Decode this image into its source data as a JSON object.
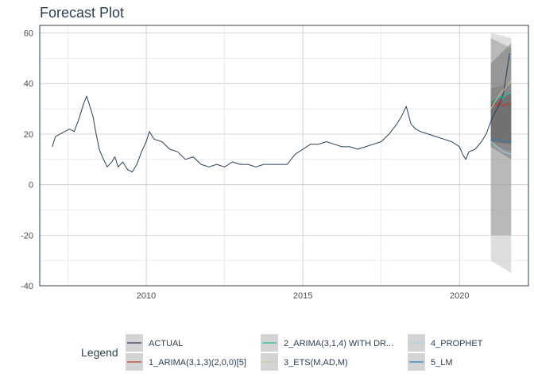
{
  "chart_data": {
    "type": "line",
    "title": "Forecast Plot",
    "xlabel": "",
    "ylabel": "",
    "xlim": [
      2006.6,
      2022.2
    ],
    "ylim": [
      -40,
      63
    ],
    "x_ticks": [
      2010,
      2015,
      2020
    ],
    "y_ticks": [
      60,
      40,
      20,
      0,
      -20,
      -40
    ],
    "grid": true,
    "legend_position": "bottom",
    "legend_title": "Legend",
    "series": [
      {
        "name": "ACTUAL",
        "color": "#2c3e50",
        "points": [
          [
            2007.0,
            15
          ],
          [
            2007.1,
            19
          ],
          [
            2007.25,
            20
          ],
          [
            2007.4,
            21
          ],
          [
            2007.55,
            22
          ],
          [
            2007.7,
            21
          ],
          [
            2007.85,
            26
          ],
          [
            2008.0,
            32
          ],
          [
            2008.1,
            35
          ],
          [
            2008.2,
            31
          ],
          [
            2008.3,
            27
          ],
          [
            2008.4,
            20
          ],
          [
            2008.5,
            14
          ],
          [
            2008.6,
            11
          ],
          [
            2008.75,
            7
          ],
          [
            2008.9,
            9
          ],
          [
            2009.0,
            11
          ],
          [
            2009.1,
            7
          ],
          [
            2009.25,
            9
          ],
          [
            2009.4,
            6
          ],
          [
            2009.55,
            5
          ],
          [
            2009.7,
            8
          ],
          [
            2009.85,
            13
          ],
          [
            2010.0,
            17
          ],
          [
            2010.1,
            21
          ],
          [
            2010.25,
            18
          ],
          [
            2010.5,
            17
          ],
          [
            2010.75,
            14
          ],
          [
            2011.0,
            13
          ],
          [
            2011.25,
            10
          ],
          [
            2011.5,
            11
          ],
          [
            2011.75,
            8
          ],
          [
            2012.0,
            7
          ],
          [
            2012.25,
            8
          ],
          [
            2012.5,
            7
          ],
          [
            2012.75,
            9
          ],
          [
            2013.0,
            8
          ],
          [
            2013.25,
            8
          ],
          [
            2013.5,
            7
          ],
          [
            2013.75,
            8
          ],
          [
            2014.0,
            8
          ],
          [
            2014.25,
            8
          ],
          [
            2014.5,
            8
          ],
          [
            2014.75,
            12
          ],
          [
            2015.0,
            14
          ],
          [
            2015.25,
            16
          ],
          [
            2015.5,
            16
          ],
          [
            2015.75,
            17
          ],
          [
            2016.0,
            16
          ],
          [
            2016.25,
            15
          ],
          [
            2016.5,
            15
          ],
          [
            2016.75,
            14
          ],
          [
            2017.0,
            15
          ],
          [
            2017.25,
            16
          ],
          [
            2017.5,
            17
          ],
          [
            2017.75,
            20
          ],
          [
            2018.0,
            24
          ],
          [
            2018.15,
            27
          ],
          [
            2018.3,
            31
          ],
          [
            2018.45,
            24
          ],
          [
            2018.6,
            22
          ],
          [
            2018.75,
            21
          ],
          [
            2019.0,
            20
          ],
          [
            2019.25,
            19
          ],
          [
            2019.5,
            18
          ],
          [
            2019.75,
            17
          ],
          [
            2020.0,
            15
          ],
          [
            2020.1,
            12
          ],
          [
            2020.2,
            10
          ],
          [
            2020.3,
            13
          ],
          [
            2020.5,
            14
          ],
          [
            2020.7,
            17
          ],
          [
            2020.85,
            20
          ],
          [
            2021.0,
            25
          ],
          [
            2021.15,
            29
          ],
          [
            2021.25,
            31
          ],
          [
            2021.4,
            36
          ],
          [
            2021.5,
            44
          ],
          [
            2021.6,
            52
          ]
        ]
      },
      {
        "name": "1_ARIMA(3,1,3)(2,0,0)[5]",
        "color": "#c0392b",
        "points": [
          [
            2021.0,
            31
          ],
          [
            2021.1,
            33
          ],
          [
            2021.2,
            31
          ],
          [
            2021.3,
            33
          ],
          [
            2021.4,
            31
          ],
          [
            2021.5,
            32
          ],
          [
            2021.65,
            32
          ]
        ]
      },
      {
        "name": "2_ARIMA(3,1,4) WITH DR...",
        "color": "#18bc9c",
        "points": [
          [
            2021.0,
            32
          ],
          [
            2021.1,
            33
          ],
          [
            2021.2,
            34
          ],
          [
            2021.3,
            35
          ],
          [
            2021.4,
            34
          ],
          [
            2021.5,
            36
          ],
          [
            2021.65,
            36
          ]
        ]
      },
      {
        "name": "3_ETS(M,AD,M)",
        "color": "#c7c7a4",
        "points": [
          [
            2021.0,
            30
          ],
          [
            2021.15,
            33
          ],
          [
            2021.3,
            36
          ],
          [
            2021.45,
            38
          ],
          [
            2021.65,
            41
          ]
        ]
      },
      {
        "name": "4_PROPHET",
        "color": "#a6cee3",
        "points": [
          [
            2021.0,
            17
          ],
          [
            2021.2,
            15
          ],
          [
            2021.4,
            13
          ],
          [
            2021.65,
            12
          ]
        ]
      },
      {
        "name": "5_LM",
        "color": "#2c7bb6",
        "points": [
          [
            2021.0,
            17.5
          ],
          [
            2021.2,
            18
          ],
          [
            2021.4,
            17
          ],
          [
            2021.65,
            17
          ]
        ]
      }
    ],
    "confidence_bands": [
      {
        "model": "1_ARIMA(3,1,3)(2,0,0)[5]",
        "fill": "#bdbdbd",
        "opacity": 0.5,
        "x": [
          2021.0,
          2021.65
        ],
        "lower": [
          -30,
          -35
        ],
        "upper": [
          60,
          58
        ]
      },
      {
        "model": "2_ARIMA(3,1,4) WITH DR...",
        "fill": "#8c8c8c",
        "opacity": 0.45,
        "x": [
          2021.0,
          2021.65
        ],
        "lower": [
          -20,
          -20
        ],
        "upper": [
          58,
          54
        ]
      },
      {
        "model": "3_ETS(M,AD,M)",
        "fill": "#6e6e6e",
        "opacity": 0.45,
        "x": [
          2021.0,
          2021.65
        ],
        "lower": [
          15,
          10
        ],
        "upper": [
          48,
          56
        ]
      },
      {
        "model": "4_PROPHET",
        "fill": "#7a7a7a",
        "opacity": 0.5,
        "x": [
          2021.0,
          2021.65
        ],
        "lower": [
          16,
          13
        ],
        "upper": [
          38,
          40
        ]
      },
      {
        "model": "5_LM",
        "fill": "#5a5a5a",
        "opacity": 0.5,
        "x": [
          2021.0,
          2021.65
        ],
        "lower": [
          17,
          16
        ],
        "upper": [
          33,
          36
        ]
      }
    ]
  }
}
